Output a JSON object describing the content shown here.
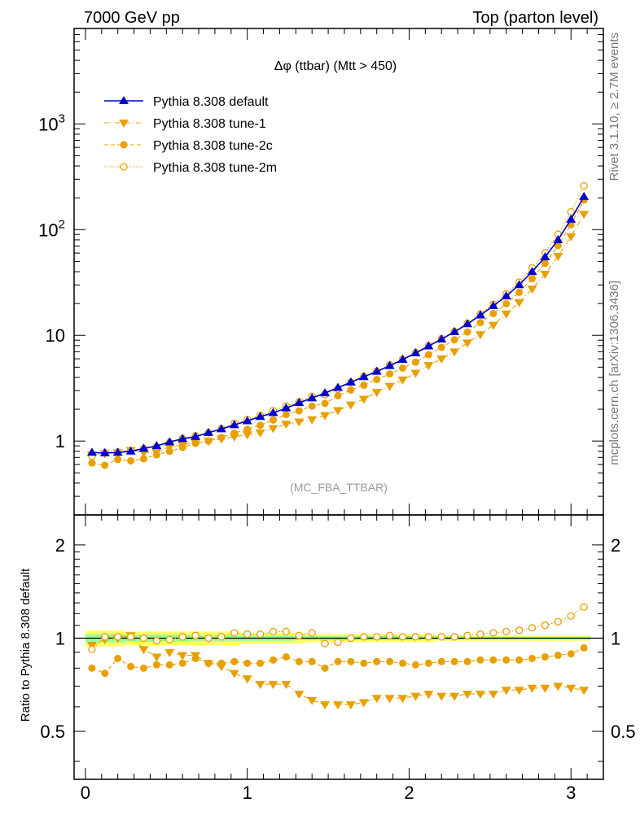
{
  "header": {
    "left": "7000 GeV pp",
    "right": "Top (parton level)"
  },
  "side_labels": {
    "rivet": "Rivet 3.1.10, ≥ 2.7M events",
    "source": "mcplots.cern.ch [arXiv:1306.3436]"
  },
  "colors": {
    "default": "#0000cc",
    "tunes": "#e8a000",
    "band_outer": "#ffff66",
    "band_inner": "#99ff99"
  },
  "chart_data": [
    {
      "type": "line",
      "title": "Δφ (ttbar) (Mtt > 450)",
      "analysis_label": "(MC_FBA_TTBAR)",
      "xlabel": "",
      "ylabel": "",
      "xlim": [
        -0.07,
        3.2
      ],
      "ylim": [
        0.2,
        8000
      ],
      "yscale": "log",
      "y_tick_labels": [
        "1",
        "10",
        "10^2",
        "10^3"
      ],
      "legend_position": "top-left",
      "x": [
        0.04,
        0.12,
        0.2,
        0.28,
        0.36,
        0.44,
        0.52,
        0.6,
        0.68,
        0.76,
        0.84,
        0.92,
        1.0,
        1.08,
        1.16,
        1.24,
        1.32,
        1.4,
        1.48,
        1.56,
        1.64,
        1.72,
        1.8,
        1.88,
        1.96,
        2.04,
        2.12,
        2.2,
        2.28,
        2.36,
        2.44,
        2.52,
        2.6,
        2.68,
        2.76,
        2.84,
        2.92,
        3.0,
        3.08
      ],
      "series": [
        {
          "name": "Pythia 8.308 default",
          "marker": "triangle-up",
          "values": [
            0.78,
            0.77,
            0.78,
            0.8,
            0.85,
            0.9,
            0.98,
            1.05,
            1.1,
            1.2,
            1.3,
            1.42,
            1.55,
            1.7,
            1.85,
            2.05,
            2.3,
            2.55,
            2.85,
            3.2,
            3.6,
            4.05,
            4.55,
            5.15,
            5.9,
            6.8,
            7.9,
            9.2,
            10.8,
            12.8,
            15.5,
            19.0,
            23.5,
            30.0,
            40.0,
            55.0,
            80.0,
            125.0,
            205.0
          ]
        },
        {
          "name": "Pythia 8.308 tune-1",
          "marker": "triangle-down",
          "values": [
            0.74,
            0.76,
            0.78,
            0.82,
            0.78,
            0.78,
            0.88,
            0.92,
            0.97,
            1.0,
            1.05,
            1.1,
            1.15,
            1.2,
            1.32,
            1.45,
            1.52,
            1.6,
            1.75,
            1.95,
            2.2,
            2.5,
            2.9,
            3.3,
            3.8,
            4.4,
            5.2,
            6.0,
            7.0,
            8.5,
            10.2,
            12.5,
            16.0,
            20.5,
            27.5,
            38.0,
            56.0,
            86.0,
            140.0
          ]
        },
        {
          "name": "Pythia 8.308 tune-2c",
          "marker": "circle",
          "values": [
            0.62,
            0.59,
            0.67,
            0.65,
            0.68,
            0.74,
            0.8,
            0.87,
            0.95,
            1.0,
            1.08,
            1.19,
            1.29,
            1.41,
            1.58,
            1.78,
            1.93,
            2.14,
            2.27,
            2.68,
            3.04,
            3.38,
            3.82,
            4.32,
            4.9,
            5.58,
            6.56,
            7.7,
            9.06,
            10.75,
            13.18,
            16.06,
            19.9,
            25.5,
            34.4,
            47.9,
            70.6,
            111.3,
            190.7
          ]
        },
        {
          "name": "Pythia 8.308 tune-2m",
          "marker": "circle-open",
          "values": [
            0.72,
            0.78,
            0.79,
            0.81,
            0.85,
            0.88,
            0.97,
            1.06,
            1.12,
            1.2,
            1.31,
            1.47,
            1.6,
            1.75,
            1.94,
            2.15,
            2.35,
            2.65,
            2.75,
            3.1,
            3.6,
            4.1,
            4.6,
            5.25,
            5.95,
            6.9,
            8.0,
            9.3,
            10.9,
            13.0,
            15.9,
            19.7,
            24.7,
            31.8,
            43.2,
            60.5,
            90.4,
            147.5,
            259.3
          ]
        }
      ]
    },
    {
      "type": "line",
      "title": "",
      "xlabel": "",
      "ylabel": "Ratio to Pythia 8.308 default",
      "xlim": [
        -0.07,
        3.2
      ],
      "ylim": [
        0.35,
        2.5
      ],
      "yscale": "log",
      "y_tick_labels": [
        "0.5",
        "1",
        "2"
      ],
      "x_tick_labels": [
        "0",
        "1",
        "2",
        "3"
      ],
      "x": [
        0.04,
        0.12,
        0.2,
        0.28,
        0.36,
        0.44,
        0.52,
        0.6,
        0.68,
        0.76,
        0.84,
        0.92,
        1.0,
        1.08,
        1.16,
        1.24,
        1.32,
        1.4,
        1.48,
        1.56,
        1.64,
        1.72,
        1.8,
        1.88,
        1.96,
        2.04,
        2.12,
        2.2,
        2.28,
        2.36,
        2.44,
        2.52,
        2.6,
        2.68,
        2.76,
        2.84,
        2.92,
        3.0,
        3.08
      ],
      "reference_band": {
        "outer_half_width": [
          0.06,
          0.06,
          0.06,
          0.05,
          0.05,
          0.05,
          0.05,
          0.05,
          0.05,
          0.05,
          0.05,
          0.05,
          0.04,
          0.04,
          0.04,
          0.04,
          0.04,
          0.03,
          0.03,
          0.03,
          0.03,
          0.03,
          0.03,
          0.03,
          0.03,
          0.03,
          0.03,
          0.02,
          0.02,
          0.02,
          0.02,
          0.02,
          0.02,
          0.02,
          0.02,
          0.02,
          0.02,
          0.02,
          0.02
        ],
        "inner_half_width": [
          0.03,
          0.03,
          0.03,
          0.025,
          0.025,
          0.025,
          0.025,
          0.025,
          0.02,
          0.02,
          0.02,
          0.02,
          0.02,
          0.02,
          0.02,
          0.02,
          0.015,
          0.015,
          0.015,
          0.015,
          0.015,
          0.015,
          0.015,
          0.015,
          0.015,
          0.015,
          0.01,
          0.01,
          0.01,
          0.01,
          0.01,
          0.01,
          0.01,
          0.01,
          0.01,
          0.01,
          0.01,
          0.01,
          0.01
        ]
      },
      "series": [
        {
          "name": "Pythia 8.308 tune-1",
          "marker": "triangle-down",
          "values": [
            0.95,
            0.99,
            1.0,
            1.02,
            0.92,
            0.87,
            0.9,
            0.88,
            0.88,
            0.83,
            0.81,
            0.77,
            0.74,
            0.71,
            0.71,
            0.71,
            0.66,
            0.63,
            0.61,
            0.61,
            0.61,
            0.62,
            0.64,
            0.64,
            0.64,
            0.65,
            0.66,
            0.65,
            0.65,
            0.66,
            0.66,
            0.66,
            0.68,
            0.68,
            0.69,
            0.69,
            0.7,
            0.69,
            0.68
          ]
        },
        {
          "name": "Pythia 8.308 tune-2c",
          "marker": "circle",
          "values": [
            0.8,
            0.77,
            0.86,
            0.81,
            0.8,
            0.82,
            0.82,
            0.83,
            0.86,
            0.83,
            0.83,
            0.84,
            0.83,
            0.83,
            0.85,
            0.87,
            0.84,
            0.84,
            0.8,
            0.84,
            0.84,
            0.83,
            0.84,
            0.84,
            0.83,
            0.82,
            0.83,
            0.84,
            0.84,
            0.84,
            0.85,
            0.85,
            0.85,
            0.85,
            0.86,
            0.87,
            0.88,
            0.89,
            0.93
          ]
        },
        {
          "name": "Pythia 8.308 tune-2m",
          "marker": "circle-open",
          "values": [
            0.92,
            1.01,
            1.01,
            1.01,
            1.0,
            0.98,
            0.99,
            1.01,
            1.02,
            1.0,
            1.01,
            1.04,
            1.03,
            1.03,
            1.05,
            1.05,
            1.02,
            1.04,
            0.96,
            0.97,
            1.0,
            1.01,
            1.01,
            1.02,
            1.01,
            1.01,
            1.01,
            1.01,
            1.01,
            1.02,
            1.03,
            1.04,
            1.05,
            1.06,
            1.08,
            1.1,
            1.13,
            1.18,
            1.26
          ]
        }
      ]
    }
  ]
}
